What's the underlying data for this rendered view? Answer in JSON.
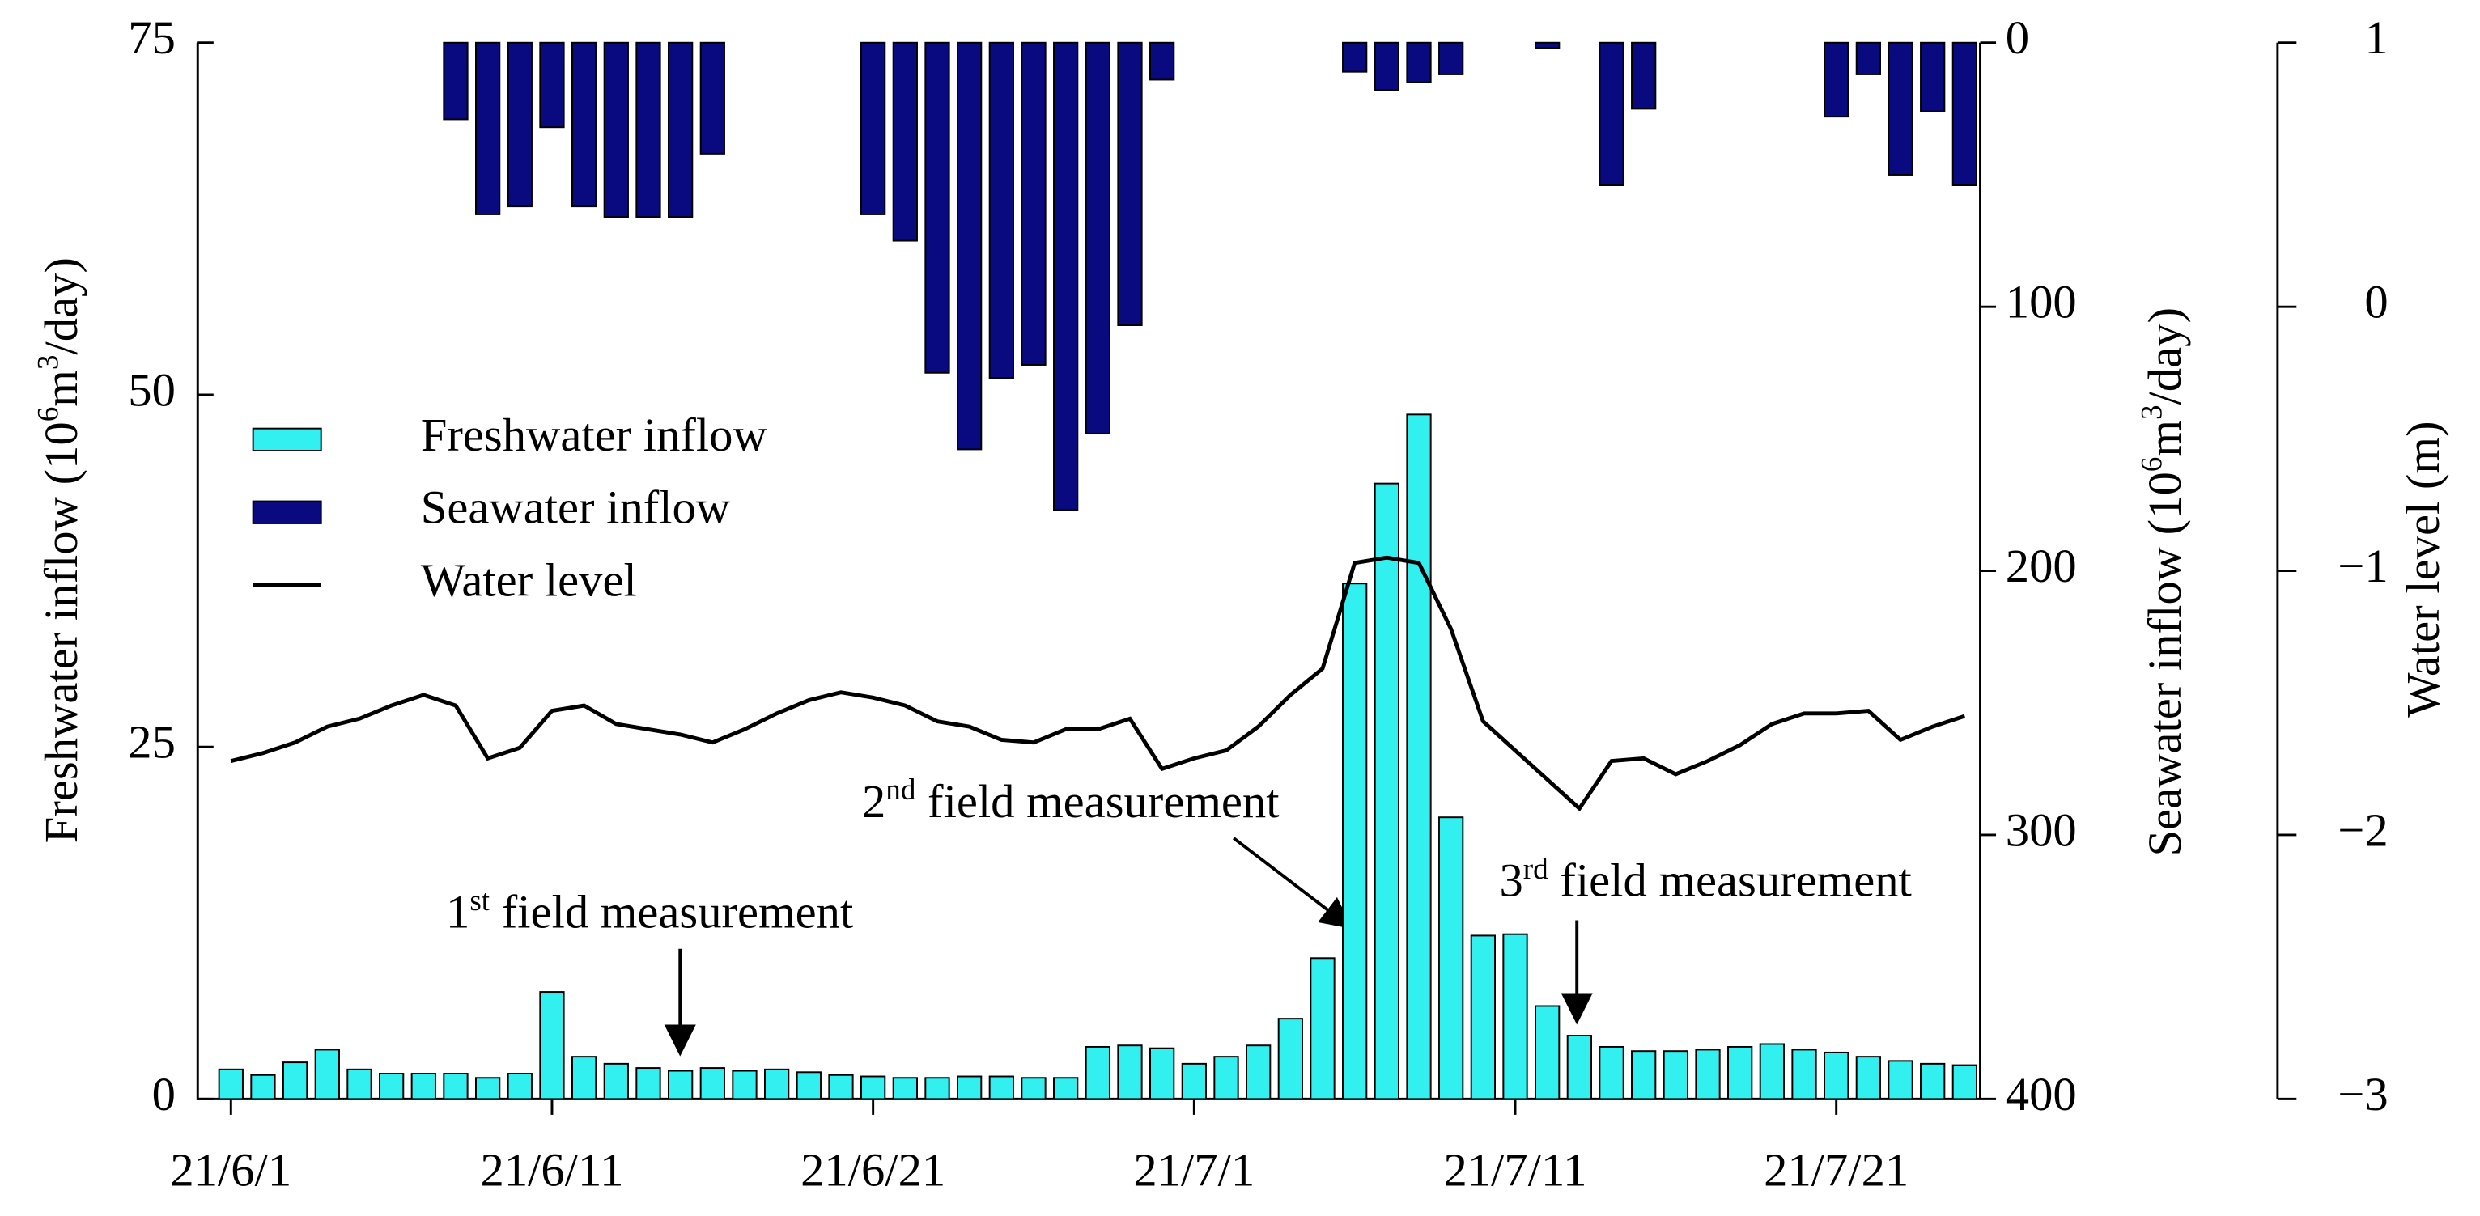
{
  "chart_data": {
    "type": "bar-line",
    "categories": [
      "21/6/1",
      null,
      null,
      null,
      null,
      null,
      null,
      null,
      null,
      null,
      "21/6/11",
      null,
      null,
      null,
      null,
      null,
      null,
      null,
      null,
      null,
      "21/6/21",
      null,
      null,
      null,
      null,
      null,
      null,
      null,
      null,
      null,
      "21/7/1",
      null,
      null,
      null,
      null,
      null,
      null,
      null,
      null,
      null,
      "21/7/11",
      null,
      null,
      null,
      null,
      null,
      null,
      null,
      null,
      null,
      "21/7/21",
      null,
      null,
      null,
      null
    ],
    "series": [
      {
        "name": "Freshwater inflow",
        "color": "#33f0f0",
        "axis": "y",
        "kind": "bar",
        "values": [
          2.1,
          1.7,
          2.6,
          3.5,
          2.1,
          1.8,
          1.8,
          1.8,
          1.5,
          1.8,
          7.6,
          3.0,
          2.5,
          2.2,
          2.0,
          2.2,
          2.0,
          2.1,
          1.9,
          1.7,
          1.6,
          1.5,
          1.5,
          1.6,
          1.6,
          1.5,
          1.5,
          3.7,
          3.8,
          3.6,
          2.5,
          3.0,
          3.8,
          5.7,
          10.0,
          36.6,
          43.7,
          48.6,
          20.0,
          11.6,
          11.7,
          6.6,
          4.5,
          3.7,
          3.4,
          3.4,
          3.5,
          3.7,
          3.9,
          3.5,
          3.3,
          3.0,
          2.7,
          2.5,
          2.4
        ]
      },
      {
        "name": "Seawater inflow",
        "color": "#0a0a80",
        "axis": "y2",
        "kind": "bar",
        "values": [
          null,
          null,
          null,
          null,
          null,
          null,
          null,
          29,
          65,
          62,
          32,
          62,
          66,
          66,
          66,
          42,
          null,
          null,
          null,
          null,
          65,
          75,
          125,
          154,
          127,
          122,
          177,
          148,
          107,
          14,
          null,
          null,
          null,
          null,
          null,
          11,
          18,
          15,
          12,
          null,
          null,
          2,
          null,
          54,
          25,
          null,
          null,
          null,
          null,
          null,
          28,
          12,
          50,
          26,
          54
        ]
      },
      {
        "name": "Water level",
        "color": "#000000",
        "axis": "y3",
        "kind": "line",
        "values": [
          -1.72,
          -1.69,
          -1.65,
          -1.59,
          -1.56,
          -1.51,
          -1.47,
          -1.51,
          -1.71,
          -1.67,
          -1.53,
          -1.51,
          -1.58,
          -1.6,
          -1.62,
          -1.65,
          -1.6,
          -1.54,
          -1.49,
          -1.46,
          -1.48,
          -1.51,
          -1.57,
          -1.59,
          -1.64,
          -1.65,
          -1.6,
          -1.6,
          -1.56,
          -1.75,
          -1.71,
          -1.68,
          -1.59,
          -1.47,
          -1.37,
          -0.97,
          -0.95,
          -0.97,
          -1.22,
          -1.57,
          -1.68,
          -1.79,
          -1.9,
          -1.72,
          -1.71,
          -1.77,
          -1.72,
          -1.66,
          -1.58,
          -1.54,
          -1.54,
          -1.53,
          -1.64,
          -1.59,
          -1.55
        ]
      }
    ],
    "ylabel": [
      "Freshwater inflow (10",
      "6",
      "m",
      "3",
      "/day)"
    ],
    "y2label": [
      "Seawater inflow (10",
      "6",
      "m",
      "3",
      "/day)"
    ],
    "y3label": "Water level (m)",
    "ylim": [
      0,
      75
    ],
    "yticks": [
      0,
      25,
      50,
      75
    ],
    "y2lim": [
      400,
      0
    ],
    "y2ticks": [
      0,
      100,
      200,
      300,
      400
    ],
    "y3lim": [
      -3,
      1
    ],
    "y3ticks": [
      {
        "value": -3,
        "label": "−3"
      },
      {
        "value": -2,
        "label": "−2"
      },
      {
        "value": -1,
        "label": "−1"
      },
      0,
      1
    ],
    "annotations": [
      {
        "text": "1",
        "sup": "st",
        "rest": " field measurement"
      },
      {
        "text": "2",
        "sup": "nd",
        "rest": " field measurement"
      },
      {
        "text": "3",
        "sup": "rd",
        "rest": " field measurement"
      }
    ],
    "legend": "upper left"
  }
}
